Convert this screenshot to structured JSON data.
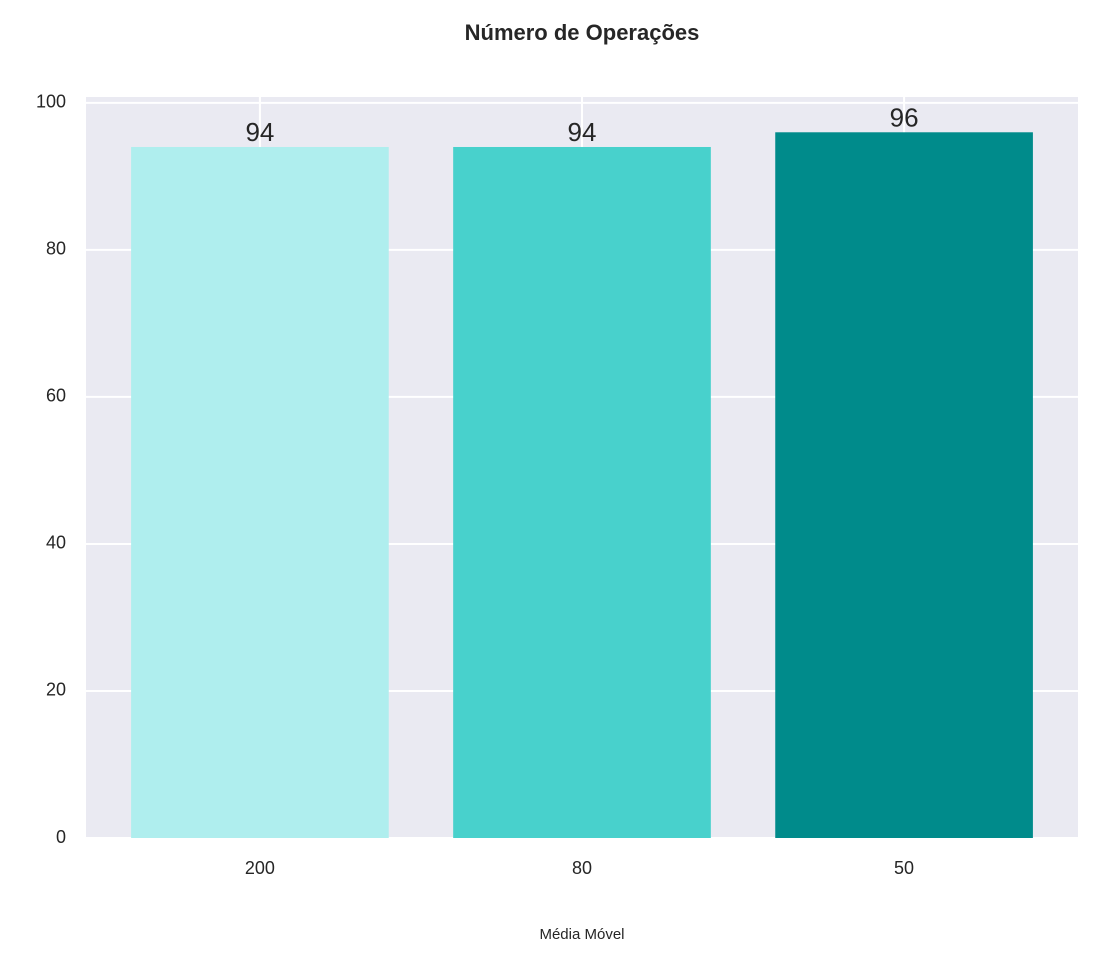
{
  "chart_data": {
    "type": "bar",
    "title": "Número de Operações",
    "xlabel": "Média Móvel",
    "categories": [
      "200",
      "80",
      "50"
    ],
    "values": [
      94,
      94,
      96
    ],
    "colors": [
      "#afeeee",
      "#48d1cc",
      "#008b8b"
    ],
    "ylim": [
      0,
      100.8
    ],
    "yticks": [
      0,
      20,
      40,
      60,
      80,
      100
    ],
    "grid": true
  }
}
